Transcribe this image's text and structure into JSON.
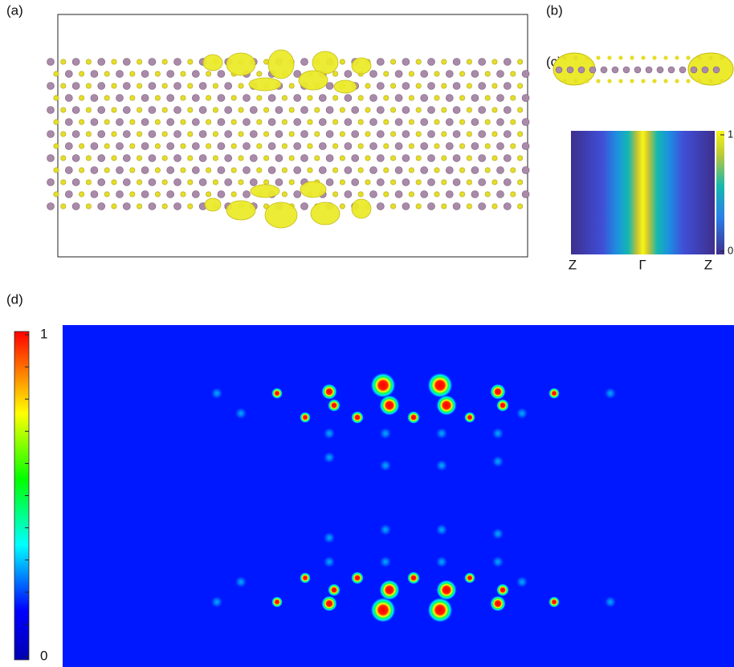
{
  "panels": {
    "a": {
      "label": "(a)"
    },
    "b": {
      "label": "(b)"
    },
    "c": {
      "label": "(c)",
      "colorbar_ticks": [
        1,
        0
      ],
      "x_labels": [
        "Z",
        "Γ",
        "Z"
      ]
    },
    "d": {
      "label": "(d)",
      "colorbar_ticks": [
        1,
        0
      ]
    }
  }
}
